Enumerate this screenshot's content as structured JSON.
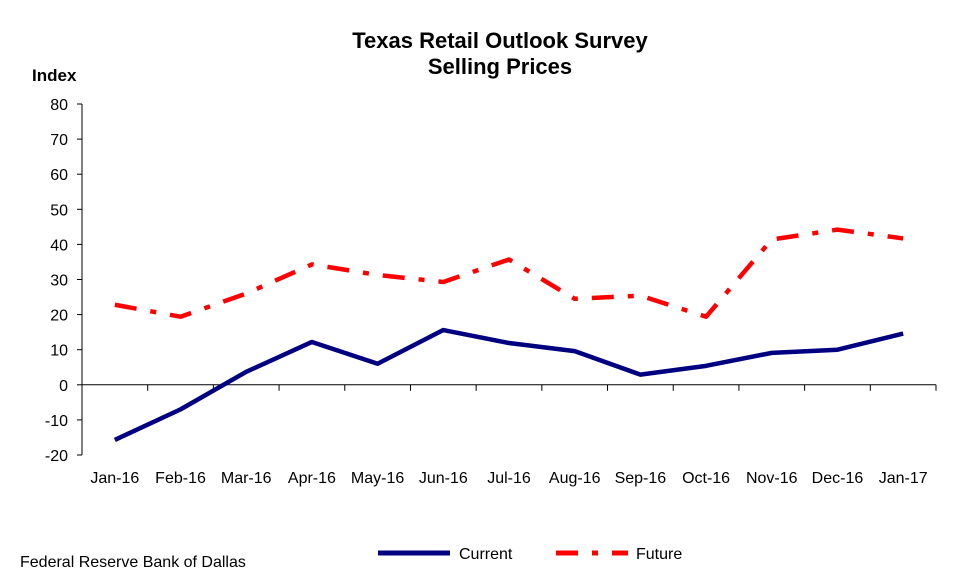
{
  "chart_data": {
    "type": "line",
    "title": "Texas Retail Outlook Survey",
    "subtitle": "Selling Prices",
    "ylabel": "Index",
    "xlabel": "",
    "ylim": [
      -20,
      80
    ],
    "yticks": [
      "80",
      "70",
      "60",
      "50",
      "40",
      "30",
      "20",
      "10",
      "0",
      "-10",
      "-20"
    ],
    "categories": [
      "Jan-16",
      "Feb-16",
      "Mar-16",
      "Apr-16",
      "May-16",
      "Jun-16",
      "Jul-16",
      "Aug-16",
      "Sep-16",
      "Oct-16",
      "Nov-16",
      "Dec-16",
      "Jan-17"
    ],
    "series": [
      {
        "name": "Current",
        "color": "#000080",
        "style": "solid",
        "values": [
          -15.7,
          -7.0,
          3.7,
          12.2,
          6.0,
          15.6,
          11.9,
          9.6,
          2.9,
          5.4,
          9.1,
          10.0,
          14.6
        ]
      },
      {
        "name": "Future",
        "color": "#ff0000",
        "style": "dash-dot",
        "values": [
          22.8,
          19.4,
          26.0,
          34.3,
          31.3,
          29.3,
          35.7,
          24.5,
          25.4,
          19.4,
          41.4,
          44.2,
          41.7
        ]
      }
    ],
    "grid": false,
    "legend": "bottom"
  },
  "footer": {
    "source": "Federal Reserve Bank of Dallas"
  }
}
